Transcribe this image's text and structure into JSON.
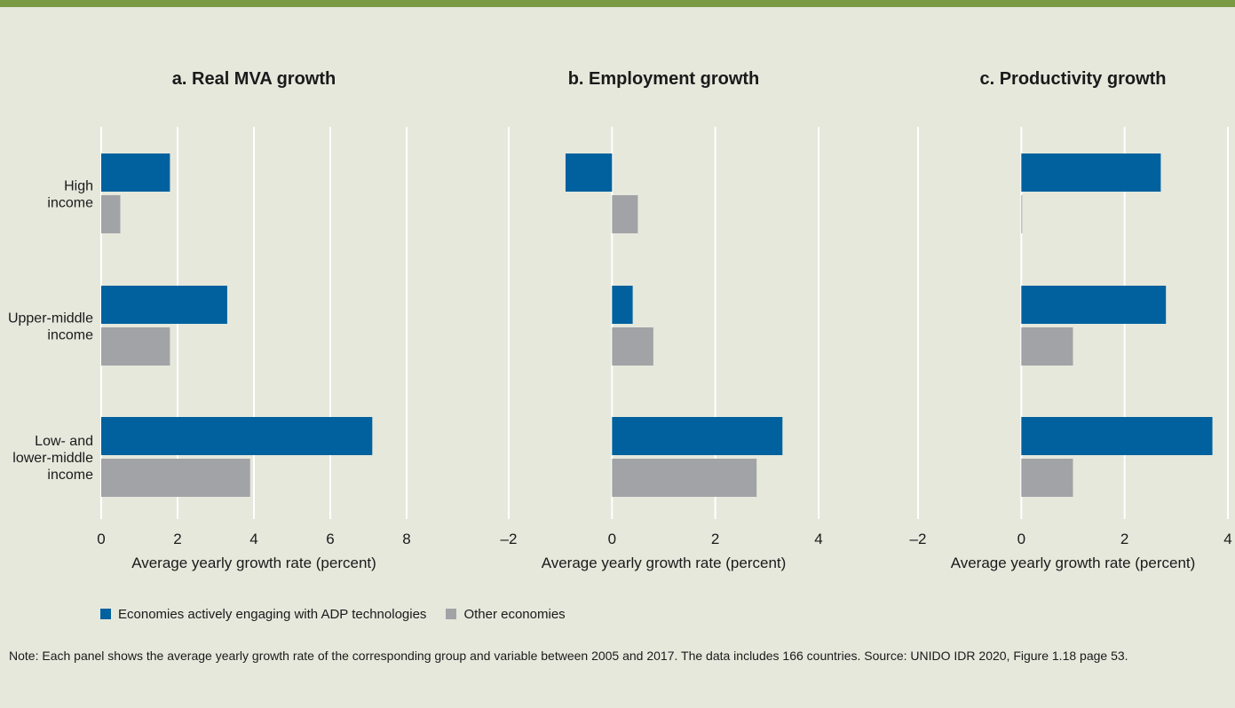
{
  "header": {
    "title_fragment": ""
  },
  "chart_data": [
    {
      "type": "bar",
      "orientation": "horizontal",
      "title": "a. Real MVA growth",
      "xlabel": "Average yearly growth rate (percent)",
      "xlim": [
        0,
        8
      ],
      "xticks": [
        0,
        2,
        4,
        6,
        8
      ],
      "xtick_labels": [
        "0",
        "2",
        "4",
        "6",
        "8"
      ],
      "categories": [
        "High income",
        "Upper-middle income",
        "Low- and lower-middle income"
      ],
      "category_lines": [
        [
          "High",
          "income"
        ],
        [
          "Upper-middle",
          "income"
        ],
        [
          "Low- and",
          "lower-middle",
          "income"
        ]
      ],
      "series": [
        {
          "name": "Economies actively engaging with ADP technologies",
          "values": [
            1.8,
            3.3,
            7.1
          ]
        },
        {
          "name": "Other economies",
          "values": [
            0.5,
            1.8,
            3.9
          ]
        }
      ],
      "grid": true
    },
    {
      "type": "bar",
      "orientation": "horizontal",
      "title": "b. Employment growth",
      "xlabel": "Average yearly growth rate (percent)",
      "xlim": [
        -2,
        4
      ],
      "xticks": [
        -2,
        0,
        2,
        4
      ],
      "xtick_labels": [
        "–2",
        "0",
        "2",
        "4"
      ],
      "categories": [
        "High income",
        "Upper-middle income",
        "Low- and lower-middle income"
      ],
      "series": [
        {
          "name": "Economies actively engaging with ADP technologies",
          "values": [
            -0.9,
            0.4,
            3.3
          ]
        },
        {
          "name": "Other economies",
          "values": [
            0.5,
            0.8,
            2.8
          ]
        }
      ],
      "grid": true
    },
    {
      "type": "bar",
      "orientation": "horizontal",
      "title": "c. Productivity growth",
      "xlabel": "Average yearly growth rate (percent)",
      "xlim": [
        -2,
        4
      ],
      "xticks": [
        -2,
        0,
        2,
        4
      ],
      "xtick_labels": [
        "–2",
        "0",
        "2",
        "4"
      ],
      "categories": [
        "High income",
        "Upper-middle income",
        "Low- and lower-middle income"
      ],
      "series": [
        {
          "name": "Economies actively engaging with ADP technologies",
          "values": [
            2.7,
            2.8,
            3.7
          ]
        },
        {
          "name": "Other economies",
          "values": [
            0.0,
            1.0,
            1.0
          ]
        }
      ],
      "grid": true
    }
  ],
  "legend": [
    {
      "label": "Economies actively engaging with ADP technologies",
      "color": "#00619e"
    },
    {
      "label": "Other economies",
      "color": "#a2a3a6"
    }
  ],
  "colors": {
    "series_1": "#00619e",
    "series_2": "#a2a3a6",
    "background": "#e6e8dc",
    "header_bar": "#7a9a44",
    "gridline": "#ffffff"
  },
  "note": "Note: Each panel shows the average yearly growth rate of the corresponding group and variable between 2005 and 2017. The data includes 166 countries. Source: UNIDO IDR 2020, Figure 1.18 page 53."
}
